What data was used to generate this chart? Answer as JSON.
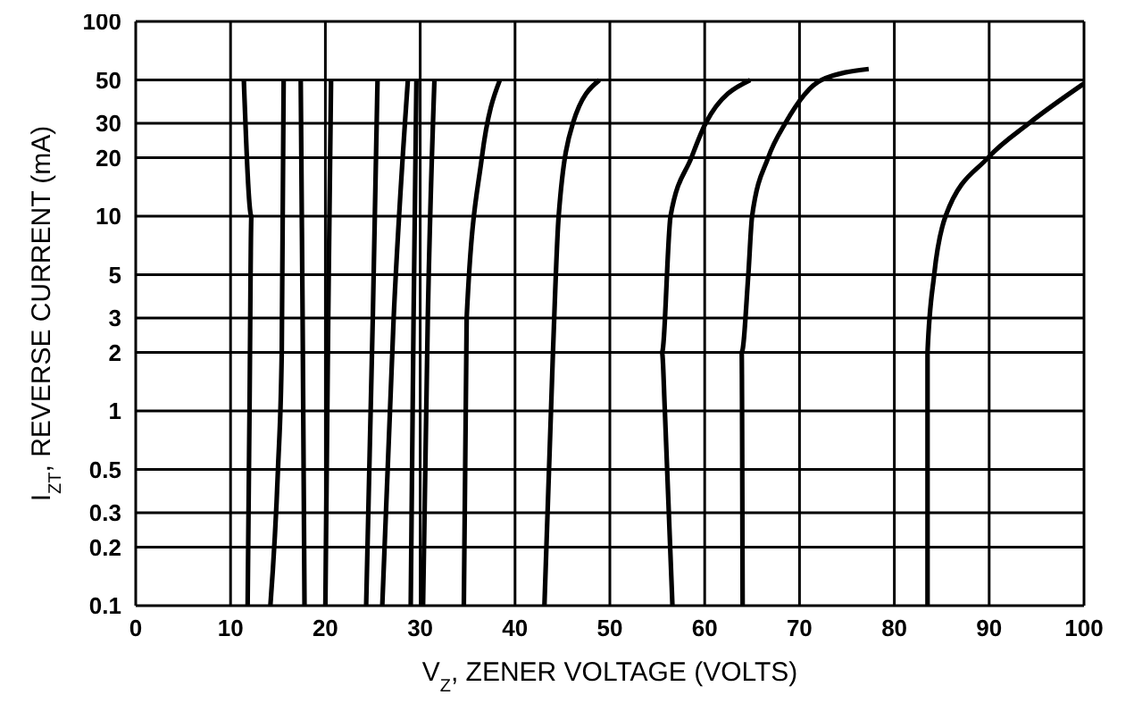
{
  "chart_data": {
    "type": "line",
    "xlabel": "V$_{Z}$, ZENER VOLTAGE (VOLTS)",
    "ylabel": "I$_{ZT}$, REVERSE CURRENT (mA)",
    "log": "y",
    "grid": true,
    "marker": "none",
    "line_style": "solid",
    "xlim": [
      0,
      100
    ],
    "xticks": [
      0,
      10,
      20,
      30,
      40,
      50,
      60,
      70,
      80,
      90,
      100
    ],
    "ylim": [
      0.1,
      100
    ],
    "yticks": [
      0.1,
      0.2,
      0.3,
      0.5,
      1,
      2,
      3,
      5,
      10,
      20,
      30,
      50,
      100
    ],
    "series": [
      {
        "color": "#000000",
        "x": [
          11.8,
          12.0,
          12.2,
          11.4
        ],
        "values": [
          0.1,
          1,
          10,
          50
        ]
      },
      {
        "color": "#000000",
        "x": [
          14.2,
          15.0,
          15.4,
          15.6
        ],
        "values": [
          0.1,
          0.5,
          2,
          50
        ]
      },
      {
        "color": "#000000",
        "x": [
          17.8,
          17.6,
          17.4
        ],
        "values": [
          0.1,
          3,
          50
        ]
      },
      {
        "color": "#000000",
        "x": [
          20.0,
          20.3,
          20.6
        ],
        "values": [
          0.1,
          3,
          50
        ]
      },
      {
        "color": "#000000",
        "x": [
          24.3,
          25.0,
          25.5
        ],
        "values": [
          0.1,
          3,
          50
        ]
      },
      {
        "color": "#000000",
        "x": [
          26.0,
          27.2,
          28.7
        ],
        "values": [
          0.1,
          3,
          50
        ]
      },
      {
        "color": "#000000",
        "x": [
          29.0,
          29.3,
          29.6
        ],
        "values": [
          0.1,
          3,
          50
        ]
      },
      {
        "color": "#000000",
        "x": [
          30.3,
          30.8,
          31.5
        ],
        "values": [
          0.1,
          3,
          50
        ]
      },
      {
        "color": "#000000",
        "x": [
          34.6,
          34.9,
          36.5,
          38.4
        ],
        "values": [
          0.1,
          3,
          20,
          50
        ]
      },
      {
        "color": "#000000",
        "x": [
          43.1,
          44.0,
          44.6,
          46.1,
          48.9
        ],
        "values": [
          0.1,
          2,
          10,
          30,
          50
        ]
      },
      {
        "color": "#000000",
        "x": [
          56.6,
          55.8,
          55.5,
          56.4,
          58.6,
          60.1,
          64.8
        ],
        "values": [
          0.1,
          1,
          2,
          10,
          20,
          30,
          50
        ]
      },
      {
        "color": "#000000",
        "x": [
          64.0,
          63.9,
          64.6,
          65.0,
          66.7,
          68.5,
          72.3,
          77.3
        ],
        "values": [
          0.1,
          2,
          5,
          10,
          20,
          30,
          50,
          57
        ]
      },
      {
        "color": "#000000",
        "x": [
          83.5,
          83.5,
          84.2,
          85.4,
          89.9,
          94.2,
          100
        ],
        "values": [
          0.1,
          2,
          5,
          10,
          20,
          30,
          48
        ]
      }
    ]
  }
}
